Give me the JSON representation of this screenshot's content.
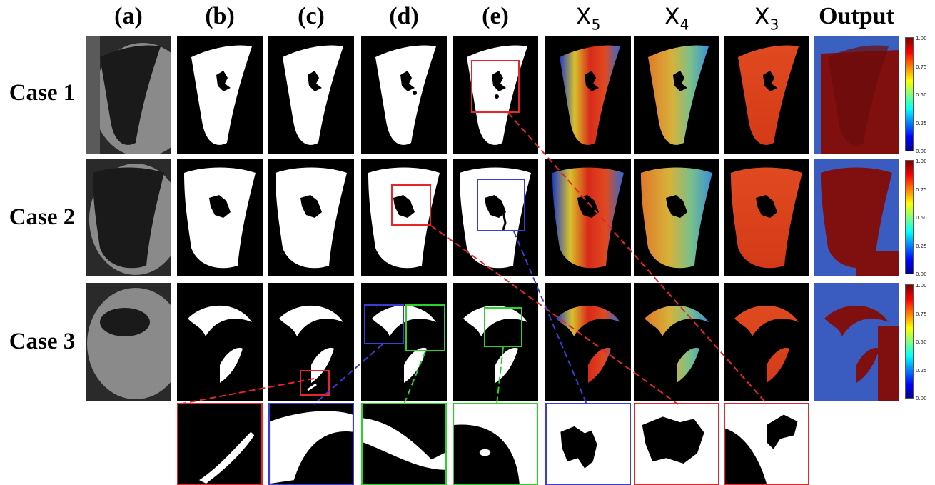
{
  "columns": [
    "(a)",
    "(b)",
    "(c)",
    "(d)",
    "(e)"
  ],
  "feature_columns": [
    {
      "base": "X",
      "sub": "5"
    },
    {
      "base": "X",
      "sub": "4"
    },
    {
      "base": "X",
      "sub": "3"
    }
  ],
  "output_label": "Output",
  "rows": [
    "Case 1",
    "Case 2",
    "Case 3"
  ],
  "colorbar_ticks": [
    "1.00",
    "0.75",
    "0.50",
    "0.25",
    "0.00"
  ],
  "colors": {
    "red": "#e8262a",
    "blue": "#3b3bd6",
    "green": "#2ad22a"
  }
}
